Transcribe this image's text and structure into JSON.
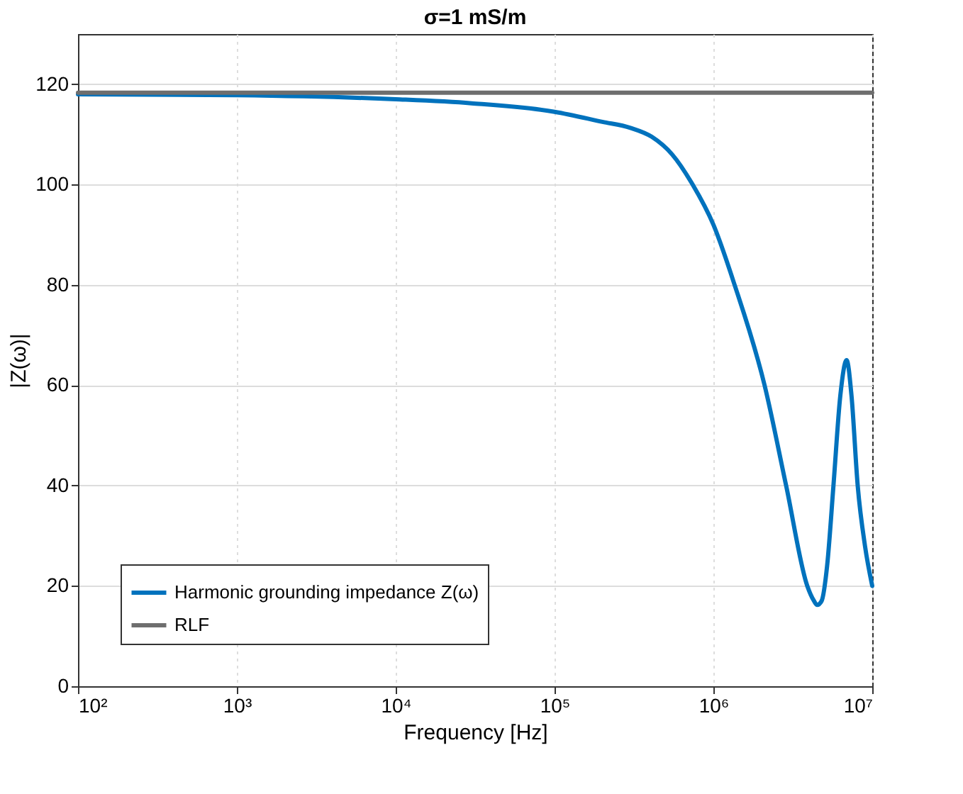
{
  "chart_data": {
    "type": "line",
    "title": "σ=1 mS/m",
    "xlabel": "Frequency [Hz]",
    "ylabel": "|Z(ω)|",
    "log": "x",
    "xlim": [
      100,
      10000000
    ],
    "ylim": [
      0,
      130
    ],
    "xticks": [
      {
        "value": 100,
        "label": "10²"
      },
      {
        "value": 1000,
        "label": "10³"
      },
      {
        "value": 10000,
        "label": "10⁴"
      },
      {
        "value": 100000,
        "label": "10⁵"
      },
      {
        "value": 1000000,
        "label": "10⁶"
      },
      {
        "value": 10000000,
        "label": "10⁷"
      }
    ],
    "yticks": [
      0,
      20,
      40,
      60,
      80,
      100,
      120
    ],
    "grid": true,
    "legend": "bottom left",
    "series": [
      {
        "name": "Harmonic grounding impedance Z(ω)",
        "color": "#0072bd",
        "x": [
          100,
          1000,
          10000,
          30000,
          100000,
          200000,
          300000,
          410000,
          550000,
          740000,
          1000000,
          1360000,
          2100000,
          2870000,
          3900000,
          4300000,
          4500000,
          4800000,
          5200000,
          5700000,
          6300000,
          6900000,
          7400000,
          8100000,
          9000000,
          10000000
        ],
        "values": [
          118,
          117.8,
          117,
          116.2,
          114.5,
          112.5,
          111.3,
          109.5,
          106,
          100,
          92,
          80,
          60,
          40,
          20,
          17,
          16.2,
          17,
          24,
          40,
          58,
          65,
          58,
          40,
          28,
          20
        ]
      },
      {
        "name": "RLF",
        "color": "#6e6e6e",
        "x": [
          100,
          10000000
        ],
        "values": [
          118.3,
          118.3
        ]
      }
    ]
  }
}
